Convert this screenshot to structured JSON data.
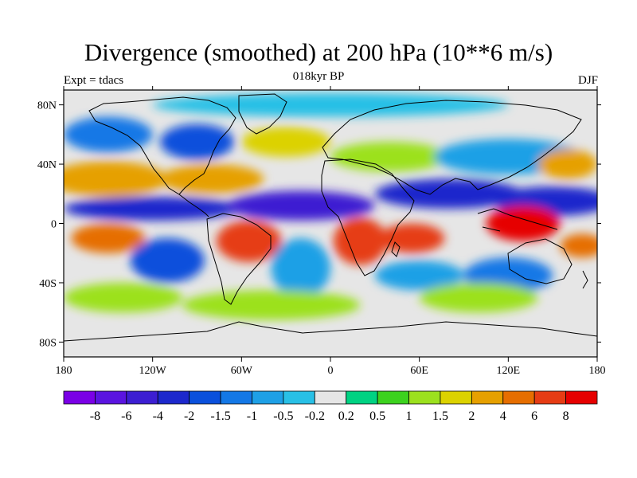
{
  "header": {
    "title": "Divergence (smoothed) at 200 hPa (10**6 m/s)",
    "left": "Expt = tdacs",
    "center": "018kyr BP",
    "right": "DJF"
  },
  "map": {
    "lon_range": [
      -180,
      180
    ],
    "lat_range": [
      -90,
      90
    ],
    "x_ticks": [
      {
        "value": -180,
        "label": "180"
      },
      {
        "value": -120,
        "label": "120W"
      },
      {
        "value": -60,
        "label": "60W"
      },
      {
        "value": 0,
        "label": "0"
      },
      {
        "value": 60,
        "label": "60E"
      },
      {
        "value": 120,
        "label": "120E"
      },
      {
        "value": 180,
        "label": "180"
      }
    ],
    "y_ticks": [
      {
        "value": 80,
        "label": "80N"
      },
      {
        "value": 40,
        "label": "40N"
      },
      {
        "value": 0,
        "label": "0"
      },
      {
        "value": -40,
        "label": "40S"
      },
      {
        "value": -80,
        "label": "80S"
      }
    ]
  },
  "colorbar": {
    "colors": [
      "#7a00e6",
      "#5a14e0",
      "#3c1ed2",
      "#1c28cc",
      "#0a50dc",
      "#1478e6",
      "#1ea0e6",
      "#28c0e6",
      "#e6e6e6",
      "#00d282",
      "#3cd21e",
      "#9ce11e",
      "#dcd200",
      "#e6a000",
      "#e66e00",
      "#e63c14",
      "#e60000"
    ],
    "labels": [
      "-8",
      "-6",
      "-4",
      "-2",
      "-1.5",
      "-1",
      "-0.5",
      "-0.2",
      "0.2",
      "0.5",
      "1",
      "1.5",
      "2",
      "4",
      "6",
      "8"
    ]
  },
  "field_blobs": [
    {
      "lon": -150,
      "lat": 30,
      "rx": 40,
      "ry": 12,
      "v": 3
    },
    {
      "lon": -80,
      "lat": 30,
      "rx": 35,
      "ry": 10,
      "v": 2
    },
    {
      "lon": -120,
      "lat": 10,
      "rx": 60,
      "ry": 8,
      "v": -4
    },
    {
      "lon": -20,
      "lat": 12,
      "rx": 50,
      "ry": 10,
      "v": -5
    },
    {
      "lon": 80,
      "lat": 20,
      "rx": 50,
      "ry": 10,
      "v": -4
    },
    {
      "lon": 150,
      "lat": 15,
      "rx": 40,
      "ry": 10,
      "v": -3
    },
    {
      "lon": -150,
      "lat": -10,
      "rx": 25,
      "ry": 10,
      "v": 4
    },
    {
      "lon": -55,
      "lat": -12,
      "rx": 22,
      "ry": 14,
      "v": 6
    },
    {
      "lon": 20,
      "lat": -12,
      "rx": 18,
      "ry": 16,
      "v": 7
    },
    {
      "lon": 55,
      "lat": -10,
      "rx": 22,
      "ry": 10,
      "v": 6
    },
    {
      "lon": 130,
      "lat": 0,
      "rx": 25,
      "ry": 12,
      "v": 8
    },
    {
      "lon": 170,
      "lat": -15,
      "rx": 15,
      "ry": 8,
      "v": 4
    },
    {
      "lon": -110,
      "lat": -25,
      "rx": 25,
      "ry": 15,
      "v": -2
    },
    {
      "lon": -20,
      "lat": -30,
      "rx": 20,
      "ry": 20,
      "v": -1
    },
    {
      "lon": 60,
      "lat": -35,
      "rx": 30,
      "ry": 10,
      "v": -1
    },
    {
      "lon": 120,
      "lat": -35,
      "rx": 30,
      "ry": 12,
      "v": -1.5
    },
    {
      "lon": -140,
      "lat": -50,
      "rx": 40,
      "ry": 10,
      "v": 1
    },
    {
      "lon": -40,
      "lat": -55,
      "rx": 60,
      "ry": 10,
      "v": 1
    },
    {
      "lon": 100,
      "lat": -50,
      "rx": 40,
      "ry": 10,
      "v": 1
    },
    {
      "lon": -150,
      "lat": 60,
      "rx": 30,
      "ry": 12,
      "v": -1.5
    },
    {
      "lon": -90,
      "lat": 55,
      "rx": 25,
      "ry": 12,
      "v": -2
    },
    {
      "lon": -30,
      "lat": 55,
      "rx": 30,
      "ry": 10,
      "v": 1.5
    },
    {
      "lon": 40,
      "lat": 45,
      "rx": 40,
      "ry": 10,
      "v": 1
    },
    {
      "lon": 120,
      "lat": 45,
      "rx": 50,
      "ry": 12,
      "v": -1
    },
    {
      "lon": 160,
      "lat": 40,
      "rx": 20,
      "ry": 10,
      "v": 2
    },
    {
      "lon": 0,
      "lat": 80,
      "rx": 120,
      "ry": 8,
      "v": -0.5
    },
    {
      "lon": 0,
      "lat": -82,
      "rx": 160,
      "ry": 6,
      "v": 0
    }
  ]
}
